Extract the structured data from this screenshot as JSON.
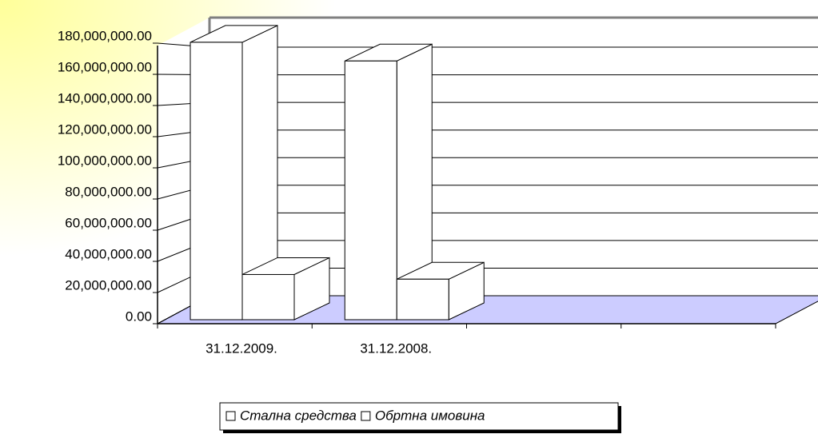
{
  "chart_data": {
    "type": "bar3d",
    "categories": [
      "31.12.2009.",
      "31.12.2008.",
      null,
      null
    ],
    "series": [
      {
        "name": "Стална средства",
        "color": "#ffffff",
        "values": [
          178000000,
          166000000,
          null,
          null
        ]
      },
      {
        "name": "Обртна имовина",
        "color": "#ffffff",
        "values": [
          29000000,
          26000000,
          null,
          null
        ]
      }
    ],
    "ylim": [
      0,
      200000000
    ],
    "yticks": [
      {
        "value": 0,
        "label": "0.00"
      },
      {
        "value": 20000000,
        "label": "20,000,000.00"
      },
      {
        "value": 40000000,
        "label": "40,000,000.00"
      },
      {
        "value": 60000000,
        "label": "60,000,000.00"
      },
      {
        "value": 80000000,
        "label": "80,000,000.00"
      },
      {
        "value": 100000000,
        "label": "100,000,000.00"
      },
      {
        "value": 120000000,
        "label": "120,000,000.00"
      },
      {
        "value": 140000000,
        "label": "140,000,000.00"
      },
      {
        "value": 160000000,
        "label": "160,000,000.00"
      },
      {
        "value": 180000000,
        "label": "180,000,000.00"
      }
    ],
    "grid": true,
    "legend": "bottom"
  }
}
